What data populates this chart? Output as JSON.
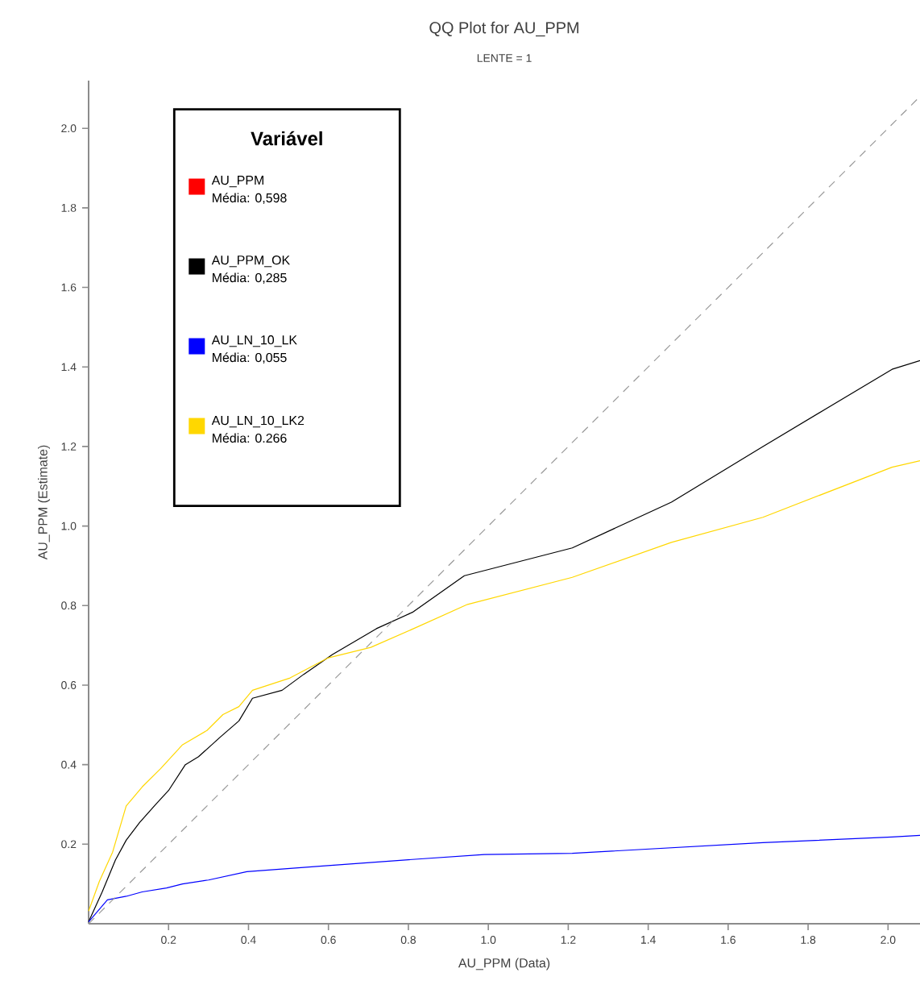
{
  "chart_data": {
    "type": "line",
    "title": "QQ Plot for AU_PPM",
    "subtitle": "LENTE = 1",
    "xlabel": "AU_PPM (Data)",
    "ylabel": "AU_PPM (Estimate)",
    "legend_title": "Variável",
    "annotations": [
      "Média: 0,598",
      "Média: 0,285",
      "Média: 0,055",
      "Média: 0.266"
    ],
    "xlim": [
      0,
      2.08
    ],
    "ylim": [
      0,
      2.12
    ],
    "xticks": [
      0.2,
      0.4,
      0.6,
      0.8,
      {
        "value": 1.0,
        "label": "1.0"
      },
      1.2,
      1.4,
      1.6,
      1.8,
      {
        "value": 2.0,
        "label": "2.0"
      }
    ],
    "yticks": [
      0.2,
      0.4,
      0.6,
      0.8,
      {
        "value": 1.0,
        "label": "1.0"
      },
      1.2,
      1.4,
      1.6,
      1.8,
      {
        "value": 2.0,
        "label": "2.0"
      }
    ],
    "grid": false,
    "legend": "top left",
    "marker": "none",
    "series": [
      {
        "name": "AU_PPM",
        "color": "#ff0000"
      },
      {
        "name": "AU_PPM_OK",
        "color": "#000000",
        "x": [
          0.0,
          0.034,
          0.067,
          0.094,
          0.128,
          0.168,
          0.2,
          0.242,
          0.275,
          0.33,
          0.376,
          0.41,
          0.484,
          0.538,
          0.61,
          0.72,
          0.81,
          0.94,
          1.21,
          1.458,
          1.687,
          2.01,
          2.08
        ],
        "values": [
          0.005,
          0.08,
          0.16,
          0.21,
          0.255,
          0.3,
          0.335,
          0.4,
          0.42,
          0.47,
          0.51,
          0.567,
          0.587,
          0.627,
          0.677,
          0.742,
          0.783,
          0.875,
          0.945,
          1.06,
          1.2,
          1.394,
          1.416
        ]
      },
      {
        "name": "AU_LN_10_LK",
        "color": "#0000ff",
        "x": [
          0.0,
          0.047,
          0.094,
          0.134,
          0.195,
          0.235,
          0.3,
          0.396,
          0.585,
          0.8,
          0.99,
          1.21,
          1.687,
          2.01,
          2.08
        ],
        "values": [
          0.005,
          0.06,
          0.069,
          0.08,
          0.09,
          0.1,
          0.11,
          0.131,
          0.145,
          0.161,
          0.174,
          0.177,
          0.204,
          0.218,
          0.222
        ]
      },
      {
        "name": "AU_LN_10_LK2",
        "color": "#ffd700",
        "x": [
          0.0,
          0.027,
          0.06,
          0.094,
          0.134,
          0.18,
          0.235,
          0.296,
          0.336,
          0.376,
          0.41,
          0.504,
          0.598,
          0.706,
          0.813,
          0.948,
          1.21,
          1.458,
          1.687,
          2.01,
          2.08
        ],
        "values": [
          0.032,
          0.107,
          0.18,
          0.296,
          0.344,
          0.39,
          0.45,
          0.486,
          0.526,
          0.546,
          0.587,
          0.618,
          0.668,
          0.695,
          0.742,
          0.803,
          0.871,
          0.959,
          1.022,
          1.148,
          1.164
        ]
      },
      {
        "type": "line",
        "color": "#999999",
        "line_style": "dashed",
        "x": [
          0,
          2.08
        ],
        "values": [
          0,
          2.08
        ]
      }
    ]
  }
}
